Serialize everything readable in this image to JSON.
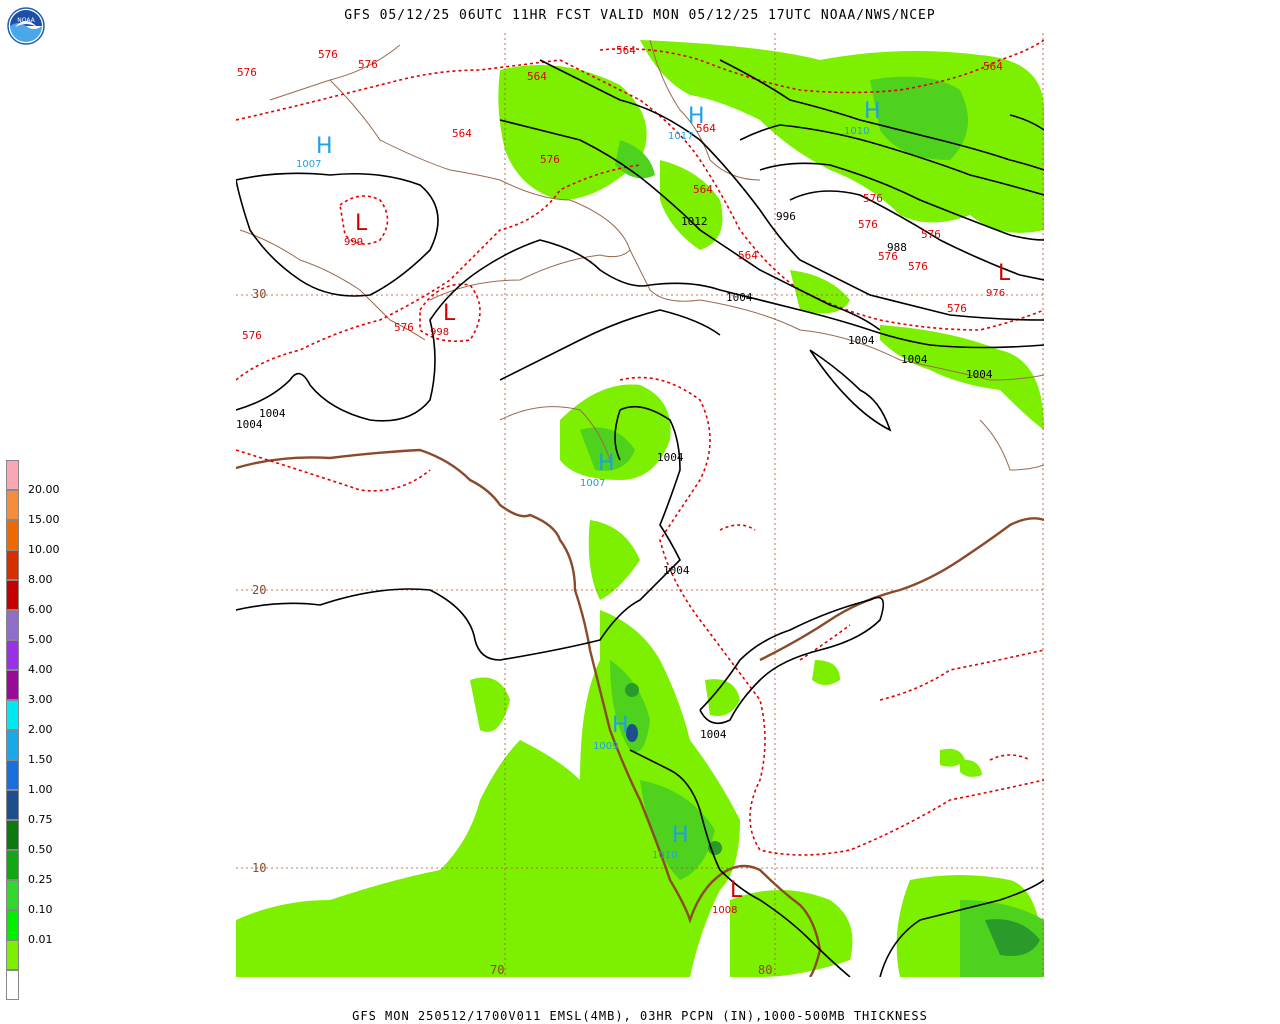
{
  "header": {
    "title": "GFS 05/12/25 06UTC 11HR FCST VALID MON 05/12/25 17UTC NOAA/NWS/NCEP"
  },
  "footer": {
    "caption": "GFS MON 250512/1700V011 EMSL(4MB), 03HR PCPN (IN),1000-500MB THICKNESS"
  },
  "logo": {
    "text": "NOAA"
  },
  "grid_labels": {
    "lat30": "30",
    "lat20": "20",
    "lat10": "10",
    "lon70": "70",
    "lon80": "80"
  },
  "pressure_centers": [
    {
      "type": "H",
      "value": "1007",
      "color": "#1ea0e6"
    },
    {
      "type": "L",
      "value": "999",
      "color": "#d40000"
    },
    {
      "type": "L",
      "value": "998",
      "color": "#d40000"
    },
    {
      "type": "H",
      "value": "1017",
      "color": "#1ea0e6"
    },
    {
      "type": "H",
      "value": "1010",
      "color": "#1ea0e6"
    },
    {
      "type": "L",
      "value": "976",
      "color": "#d40000"
    },
    {
      "type": "H",
      "value": "1007",
      "color": "#1ea0e6"
    },
    {
      "type": "H",
      "value": "1009",
      "color": "#1ea0e6"
    },
    {
      "type": "H",
      "value": "1010",
      "color": "#1ea0e6"
    },
    {
      "type": "L",
      "value": "1008",
      "color": "#d40000"
    }
  ],
  "isobar_labels": [
    "1012",
    "996",
    "988",
    "1004",
    "1004",
    "1004",
    "1004",
    "1004",
    "1004",
    "1004",
    "1004",
    "1004",
    "1004"
  ],
  "thickness_labels": [
    "576",
    "576",
    "576",
    "576",
    "576",
    "576",
    "576",
    "576",
    "576",
    "576",
    "576",
    "576",
    "564",
    "564",
    "564",
    "564",
    "564",
    "564",
    "564"
  ],
  "legend": {
    "title": "03HR PCPN (IN)",
    "levels": [
      {
        "label": "20.00",
        "color": "#f9a7b6"
      },
      {
        "label": "15.00",
        "color": "#f58d3c"
      },
      {
        "label": "10.00",
        "color": "#ee6a00"
      },
      {
        "label": "8.00",
        "color": "#d63000"
      },
      {
        "label": "6.00",
        "color": "#c40000"
      },
      {
        "label": "5.00",
        "color": "#8e6ec8"
      },
      {
        "label": "4.00",
        "color": "#9b30e6"
      },
      {
        "label": "3.00",
        "color": "#9a0a9a"
      },
      {
        "label": "2.00",
        "color": "#00e8f0"
      },
      {
        "label": "1.50",
        "color": "#1aa8e8"
      },
      {
        "label": "1.00",
        "color": "#1a6fe0"
      },
      {
        "label": "0.75",
        "color": "#1e4f8c"
      },
      {
        "label": "0.50",
        "color": "#0c7a0c"
      },
      {
        "label": "0.25",
        "color": "#13a813"
      },
      {
        "label": "0.10",
        "color": "#30d830"
      },
      {
        "label": "0.01",
        "color": "#00f000"
      },
      {
        "label": "",
        "color": "#7cf000"
      },
      {
        "label": "",
        "color": "#ffffff"
      }
    ]
  },
  "colors": {
    "isobar": "#000000",
    "thickness": "#e00000",
    "coast": "#8b4a2a",
    "border": "#9a6a50",
    "grid": "#a0522d",
    "precip_light": "#7cf000",
    "precip_med": "#4fd21e",
    "precip_heavy": "#2a9a2a"
  }
}
